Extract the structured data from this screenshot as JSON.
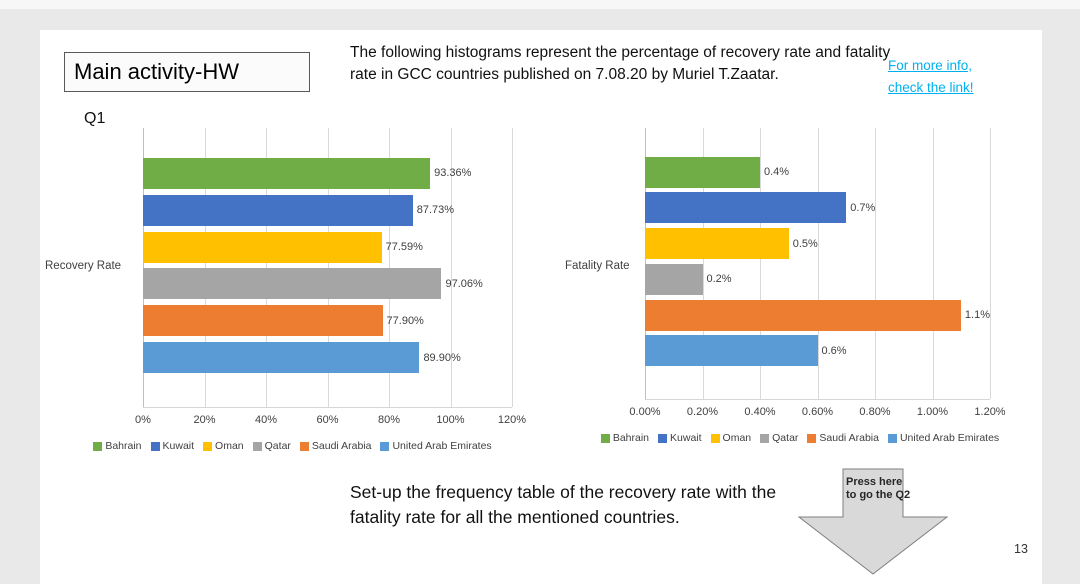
{
  "slide": {
    "title_box": "Main activity-HW",
    "q_label": "Q1",
    "description": "The following histograms represent the percentage of recovery rate and fatality rate in GCC countries published on 7.08.20 by Muriel T.Zaatar.",
    "link_line1": "For more info,",
    "link_line2": "check the link!",
    "task_text": "Set-up the frequency table of the recovery rate with the fatality rate for all the mentioned countries.",
    "arrow_label": "Press here to go the Q2",
    "page_number": "13",
    "link_color": "#00B0F0"
  },
  "chart_data": [
    {
      "type": "bar",
      "orientation": "horizontal",
      "axis_label": "Recovery Rate",
      "categories": [
        "Bahrain",
        "Kuwait",
        "Oman",
        "Qatar",
        "Saudi Arabia",
        "United Arab Emirates"
      ],
      "values": [
        93.36,
        87.73,
        77.59,
        97.06,
        77.9,
        89.9
      ],
      "data_labels": [
        "93.36%",
        "87.73%",
        "77.59%",
        "97.06%",
        "77.90%",
        "89.90%"
      ],
      "colors": [
        "#70AD47",
        "#4472C4",
        "#FFC000",
        "#A5A5A5",
        "#ED7D31",
        "#5B9BD5"
      ],
      "xlim": [
        0,
        120
      ],
      "tick_labels": [
        "0%",
        "20%",
        "40%",
        "60%",
        "80%",
        "100%",
        "120%"
      ],
      "grid": true,
      "legend_position": "bottom"
    },
    {
      "type": "bar",
      "orientation": "horizontal",
      "axis_label": "Fatality Rate",
      "categories": [
        "Bahrain",
        "Kuwait",
        "Oman",
        "Qatar",
        "Saudi Arabia",
        "United Arab Emirates"
      ],
      "values": [
        0.4,
        0.7,
        0.5,
        0.2,
        1.1,
        0.6
      ],
      "data_labels": [
        "0.4%",
        "0.7%",
        "0.5%",
        "0.2%",
        "1.1%",
        "0.6%"
      ],
      "colors": [
        "#70AD47",
        "#4472C4",
        "#FFC000",
        "#A5A5A5",
        "#ED7D31",
        "#5B9BD5"
      ],
      "xlim": [
        0,
        1.2
      ],
      "tick_labels": [
        "0.00%",
        "0.20%",
        "0.40%",
        "0.60%",
        "0.80%",
        "1.00%",
        "1.20%"
      ],
      "grid": true,
      "legend_position": "bottom"
    }
  ]
}
